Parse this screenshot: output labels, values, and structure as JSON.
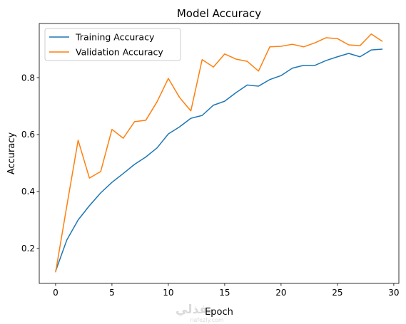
{
  "chart_data": {
    "type": "line",
    "title": "Model Accuracy",
    "xlabel": "Epoch",
    "ylabel": "Accuracy",
    "xlim": [
      -1.45,
      30.45
    ],
    "ylim": [
      0.077,
      0.99
    ],
    "xticks": [
      0,
      5,
      10,
      15,
      20,
      25,
      30
    ],
    "yticks": [
      0.2,
      0.4,
      0.6,
      0.8
    ],
    "grid": false,
    "legend_position": "top-left",
    "x": [
      0,
      1,
      2,
      3,
      4,
      5,
      6,
      7,
      8,
      9,
      10,
      11,
      12,
      13,
      14,
      15,
      16,
      17,
      18,
      19,
      20,
      21,
      22,
      23,
      24,
      25,
      26,
      27,
      28,
      29
    ],
    "series": [
      {
        "name": "Training Accuracy",
        "color": "#1f77b4",
        "values": [
          0.12,
          0.23,
          0.3,
          0.35,
          0.395,
          0.432,
          0.463,
          0.495,
          0.521,
          0.553,
          0.602,
          0.627,
          0.657,
          0.667,
          0.703,
          0.717,
          0.747,
          0.774,
          0.77,
          0.793,
          0.807,
          0.833,
          0.843,
          0.843,
          0.86,
          0.873,
          0.885,
          0.873,
          0.897,
          0.9
        ]
      },
      {
        "name": "Validation Accuracy",
        "color": "#ff7f0e",
        "values": [
          0.116,
          0.35,
          0.58,
          0.447,
          0.47,
          0.618,
          0.587,
          0.645,
          0.65,
          0.715,
          0.797,
          0.73,
          0.683,
          0.863,
          0.837,
          0.883,
          0.865,
          0.857,
          0.823,
          0.908,
          0.91,
          0.917,
          0.908,
          0.922,
          0.94,
          0.937,
          0.915,
          0.912,
          0.953,
          0.927
        ]
      }
    ]
  },
  "watermark": {
    "text": "نفذلي",
    "subtext": "nafezly.com"
  }
}
